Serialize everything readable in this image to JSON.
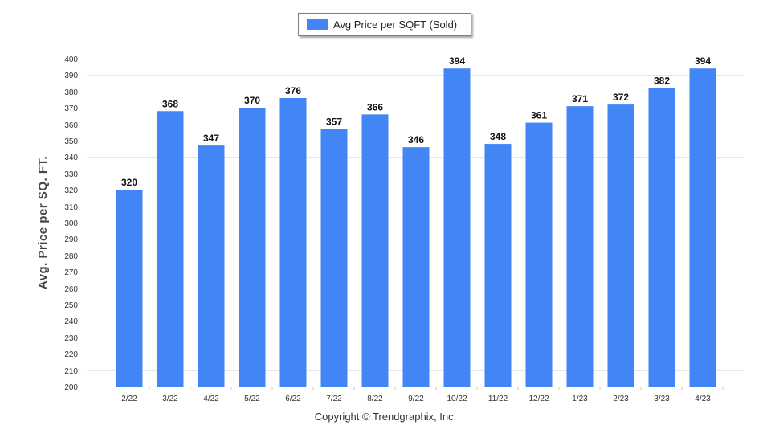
{
  "chart_data": {
    "type": "bar",
    "categories": [
      "2/22",
      "3/22",
      "4/22",
      "5/22",
      "6/22",
      "7/22",
      "8/22",
      "9/22",
      "10/22",
      "11/22",
      "12/22",
      "1/23",
      "2/23",
      "3/23",
      "4/23"
    ],
    "series": [
      {
        "name": "Avg Price per SQFT (Sold)",
        "values": [
          320,
          368,
          347,
          370,
          376,
          357,
          366,
          346,
          394,
          348,
          361,
          371,
          372,
          382,
          394
        ],
        "color": "#4285f4"
      }
    ],
    "title": "",
    "xlabel": "",
    "ylabel": "Avg. Price per SQ. FT.",
    "ylim": [
      200,
      400
    ],
    "ytick_step": 10,
    "data_labels": true,
    "grid": true,
    "legend_position": "top-center"
  },
  "footer": {
    "copyright": "Copyright © Trendgraphix, Inc."
  }
}
